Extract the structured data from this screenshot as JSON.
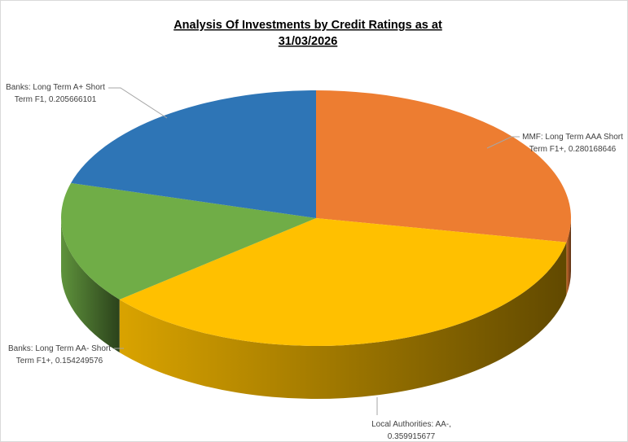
{
  "chart_data": {
    "type": "pie3d",
    "title": "Analysis Of Investments by Credit Ratings as at 31/03/2026",
    "categories": [
      "MMF: Long Term AAA Short Term F1+",
      "Local Authorities: AA-",
      "Banks: Long Term AA- Short Term F1+",
      "Banks: Long Term A+ Short Term F1"
    ],
    "values": [
      0.280168646,
      0.359915677,
      0.154249576,
      0.205666101
    ],
    "value_labels": [
      "MMF: Long Term AAA Short Term F1+, 0.280168646",
      "Local Authorities: AA-, 0.359915677",
      "Banks: Long Term AA- Short Term F1+, 0.154249576",
      "Banks: Long Term A+ Short Term F1, 0.205666101"
    ],
    "colors": [
      "#ed7d31",
      "#ffc000",
      "#70ad47",
      "#2e75b6"
    ]
  }
}
